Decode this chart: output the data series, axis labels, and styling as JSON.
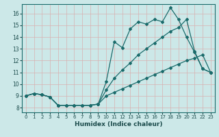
{
  "xlabel": "Humidex (Indice chaleur)",
  "bg_color": "#cce8e8",
  "grid_color": "#b0d4d4",
  "line_color": "#1a6b6b",
  "xlim": [
    -0.5,
    23.5
  ],
  "ylim": [
    7.6,
    16.8
  ],
  "xticks": [
    0,
    1,
    2,
    3,
    4,
    5,
    6,
    7,
    8,
    9,
    10,
    11,
    12,
    13,
    14,
    15,
    16,
    17,
    18,
    19,
    20,
    21,
    22,
    23
  ],
  "yticks": [
    8,
    9,
    10,
    11,
    12,
    13,
    14,
    15,
    16
  ],
  "line1_x": [
    0,
    1,
    2,
    3,
    4,
    5,
    6,
    7,
    8,
    9,
    10,
    11,
    12,
    13,
    14,
    15,
    16,
    17,
    18,
    19,
    20,
    21,
    22,
    23
  ],
  "line1_y": [
    9.0,
    9.2,
    9.1,
    8.9,
    8.2,
    8.2,
    8.2,
    8.2,
    8.2,
    8.3,
    10.2,
    13.6,
    13.1,
    14.7,
    15.3,
    15.1,
    15.5,
    15.3,
    16.5,
    15.5,
    14.0,
    12.7,
    11.3,
    11.0
  ],
  "line2_x": [
    0,
    1,
    2,
    3,
    4,
    5,
    6,
    7,
    8,
    9,
    10,
    11,
    12,
    13,
    14,
    15,
    16,
    17,
    18,
    19,
    20,
    21,
    22,
    23
  ],
  "line2_y": [
    9.0,
    9.2,
    9.1,
    8.9,
    8.2,
    8.2,
    8.2,
    8.2,
    8.2,
    8.3,
    9.5,
    10.5,
    11.2,
    11.8,
    12.5,
    13.0,
    13.5,
    14.0,
    14.5,
    14.8,
    15.5,
    12.8,
    11.3,
    11.0
  ],
  "line3_x": [
    0,
    1,
    2,
    3,
    4,
    5,
    6,
    7,
    8,
    9,
    10,
    11,
    12,
    13,
    14,
    15,
    16,
    17,
    18,
    19,
    20,
    21,
    22,
    23
  ],
  "line3_y": [
    9.0,
    9.2,
    9.1,
    8.9,
    8.2,
    8.2,
    8.2,
    8.2,
    8.2,
    8.3,
    9.0,
    9.3,
    9.6,
    9.9,
    10.2,
    10.5,
    10.8,
    11.1,
    11.4,
    11.7,
    12.0,
    12.2,
    12.5,
    11.0
  ]
}
